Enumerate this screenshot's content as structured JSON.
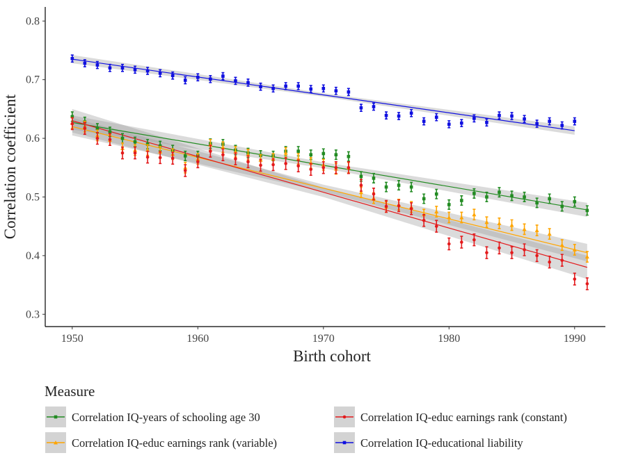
{
  "chart_data": {
    "type": "scatter",
    "x_label": "Birth cohort",
    "y_label": "Correlation coefficient",
    "legend_title": "Measure",
    "xlim": [
      1947.85,
      1992.45
    ],
    "ylim": [
      0.279,
      0.824
    ],
    "xticks": [
      1950,
      1960,
      1970,
      1980,
      1990
    ],
    "yticks": [
      0.3,
      0.4,
      0.5,
      0.6,
      0.7,
      0.8
    ],
    "grid": false,
    "series": [
      {
        "name": "Correlation IQ-years of schooling age 30",
        "color": "#228b22",
        "marker": "square",
        "error": 0.008,
        "x": [
          1950,
          1951,
          1952,
          1953,
          1954,
          1955,
          1956,
          1957,
          1958,
          1959,
          1960,
          1961,
          1962,
          1963,
          1964,
          1965,
          1966,
          1967,
          1968,
          1969,
          1970,
          1971,
          1972,
          1973,
          1974,
          1975,
          1976,
          1977,
          1978,
          1979,
          1980,
          1981,
          1982,
          1983,
          1984,
          1985,
          1986,
          1987,
          1988,
          1989,
          1990,
          1991
        ],
        "values": [
          0.637,
          0.628,
          0.617,
          0.611,
          0.6,
          0.594,
          0.59,
          0.587,
          0.58,
          0.57,
          0.57,
          0.591,
          0.59,
          0.58,
          0.575,
          0.571,
          0.57,
          0.578,
          0.578,
          0.572,
          0.574,
          0.572,
          0.569,
          0.535,
          0.532,
          0.517,
          0.52,
          0.517,
          0.497,
          0.505,
          0.487,
          0.494,
          0.506,
          0.5,
          0.508,
          0.502,
          0.5,
          0.49,
          0.497,
          0.484,
          0.492,
          0.477
        ],
        "fit": {
          "x": [
            1950,
            1970,
            1991
          ],
          "values": [
            0.627,
            0.554,
            0.478
          ],
          "lower": [
            0.615,
            0.549,
            0.466
          ],
          "upper": [
            0.639,
            0.559,
            0.49
          ]
        }
      },
      {
        "name": "Correlation IQ-educ earnings rank (variable)",
        "color": "#ffa500",
        "marker": "triangle",
        "error": 0.009,
        "x": [
          1950,
          1951,
          1952,
          1953,
          1954,
          1955,
          1956,
          1957,
          1958,
          1959,
          1960,
          1961,
          1962,
          1963,
          1964,
          1965,
          1966,
          1967,
          1968,
          1969,
          1970,
          1971,
          1972,
          1973,
          1974,
          1975,
          1976,
          1977,
          1978,
          1979,
          1980,
          1981,
          1982,
          1983,
          1984,
          1985,
          1986,
          1987,
          1988,
          1989,
          1990,
          1991
        ],
        "values": [
          0.626,
          0.62,
          0.605,
          0.597,
          0.583,
          0.58,
          0.58,
          0.577,
          0.573,
          0.55,
          0.565,
          0.589,
          0.585,
          0.577,
          0.572,
          0.563,
          0.565,
          0.575,
          0.565,
          0.558,
          0.555,
          0.548,
          0.55,
          0.508,
          0.498,
          0.483,
          0.487,
          0.483,
          0.47,
          0.475,
          0.465,
          0.465,
          0.47,
          0.457,
          0.455,
          0.452,
          0.445,
          0.443,
          0.437,
          0.418,
          0.41,
          0.398
        ],
        "fit": {
          "x": [
            1950,
            1970,
            1991
          ],
          "values": [
            0.62,
            0.515,
            0.405
          ],
          "lower": [
            0.605,
            0.509,
            0.39
          ],
          "upper": [
            0.635,
            0.521,
            0.42
          ]
        }
      },
      {
        "name": "Correlation IQ-educ earnings rank (constant)",
        "color": "#e31a1c",
        "marker": "circle",
        "error": 0.01,
        "x": [
          1950,
          1951,
          1952,
          1953,
          1954,
          1955,
          1956,
          1957,
          1958,
          1959,
          1960,
          1961,
          1962,
          1963,
          1964,
          1965,
          1966,
          1967,
          1968,
          1969,
          1970,
          1971,
          1972,
          1973,
          1974,
          1975,
          1976,
          1977,
          1978,
          1979,
          1980,
          1981,
          1982,
          1983,
          1984,
          1985,
          1986,
          1987,
          1988,
          1989,
          1990,
          1991
        ],
        "values": [
          0.625,
          0.617,
          0.6,
          0.598,
          0.575,
          0.575,
          0.568,
          0.567,
          0.566,
          0.545,
          0.56,
          0.578,
          0.572,
          0.565,
          0.56,
          0.554,
          0.555,
          0.557,
          0.553,
          0.547,
          0.55,
          0.55,
          0.55,
          0.52,
          0.505,
          0.484,
          0.485,
          0.48,
          0.46,
          0.45,
          0.42,
          0.423,
          0.427,
          0.405,
          0.413,
          0.405,
          0.41,
          0.4,
          0.389,
          0.392,
          0.36,
          0.352
        ],
        "fit": {
          "x": [
            1950,
            1970,
            1991
          ],
          "values": [
            0.63,
            0.508,
            0.38
          ],
          "lower": [
            0.61,
            0.5,
            0.36
          ],
          "upper": [
            0.65,
            0.516,
            0.4
          ]
        }
      },
      {
        "name": "Correlation IQ-educational liability",
        "color": "#1010e0",
        "marker": "square",
        "error": 0.006,
        "x": [
          1950,
          1951,
          1952,
          1953,
          1954,
          1955,
          1956,
          1957,
          1958,
          1959,
          1960,
          1961,
          1962,
          1963,
          1964,
          1965,
          1966,
          1967,
          1968,
          1969,
          1970,
          1971,
          1972,
          1973,
          1974,
          1975,
          1976,
          1977,
          1978,
          1979,
          1980,
          1981,
          1982,
          1983,
          1984,
          1985,
          1986,
          1987,
          1988,
          1989,
          1990
        ],
        "values": [
          0.736,
          0.728,
          0.725,
          0.72,
          0.72,
          0.717,
          0.715,
          0.711,
          0.707,
          0.699,
          0.704,
          0.701,
          0.706,
          0.698,
          0.695,
          0.688,
          0.685,
          0.689,
          0.689,
          0.684,
          0.685,
          0.681,
          0.679,
          0.652,
          0.654,
          0.639,
          0.638,
          0.643,
          0.629,
          0.636,
          0.624,
          0.626,
          0.634,
          0.627,
          0.639,
          0.638,
          0.633,
          0.625,
          0.629,
          0.622,
          0.629
        ],
        "fit": {
          "x": [
            1950,
            1970,
            1990
          ],
          "values": [
            0.735,
            0.674,
            0.613
          ],
          "lower": [
            0.728,
            0.671,
            0.606
          ],
          "upper": [
            0.742,
            0.677,
            0.62
          ]
        }
      }
    ]
  }
}
